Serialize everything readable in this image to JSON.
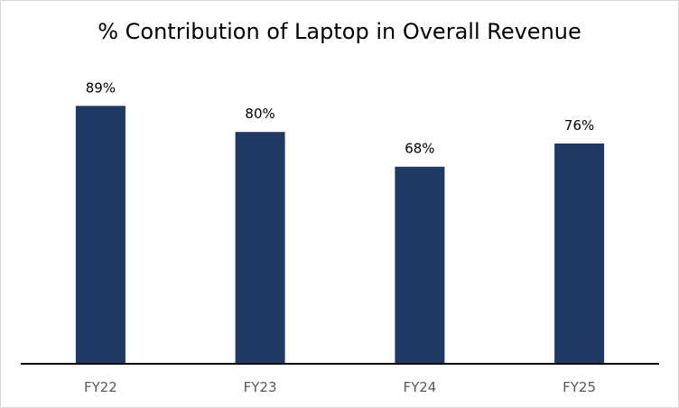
{
  "chart_data": {
    "type": "bar",
    "title": "% Contribution of Laptop in Overall Revenue",
    "categories": [
      "FY22",
      "FY23",
      "FY24",
      "FY25"
    ],
    "values": [
      89,
      80,
      68,
      76
    ],
    "data_labels": [
      "89%",
      "80%",
      "68%",
      "76%"
    ],
    "ylim": [
      0,
      100
    ],
    "grid": false,
    "legend": "none",
    "colors": {
      "bar": "#1F3864",
      "axis": "#000000",
      "tick_text": "#595959",
      "label_text": "#000000"
    }
  }
}
